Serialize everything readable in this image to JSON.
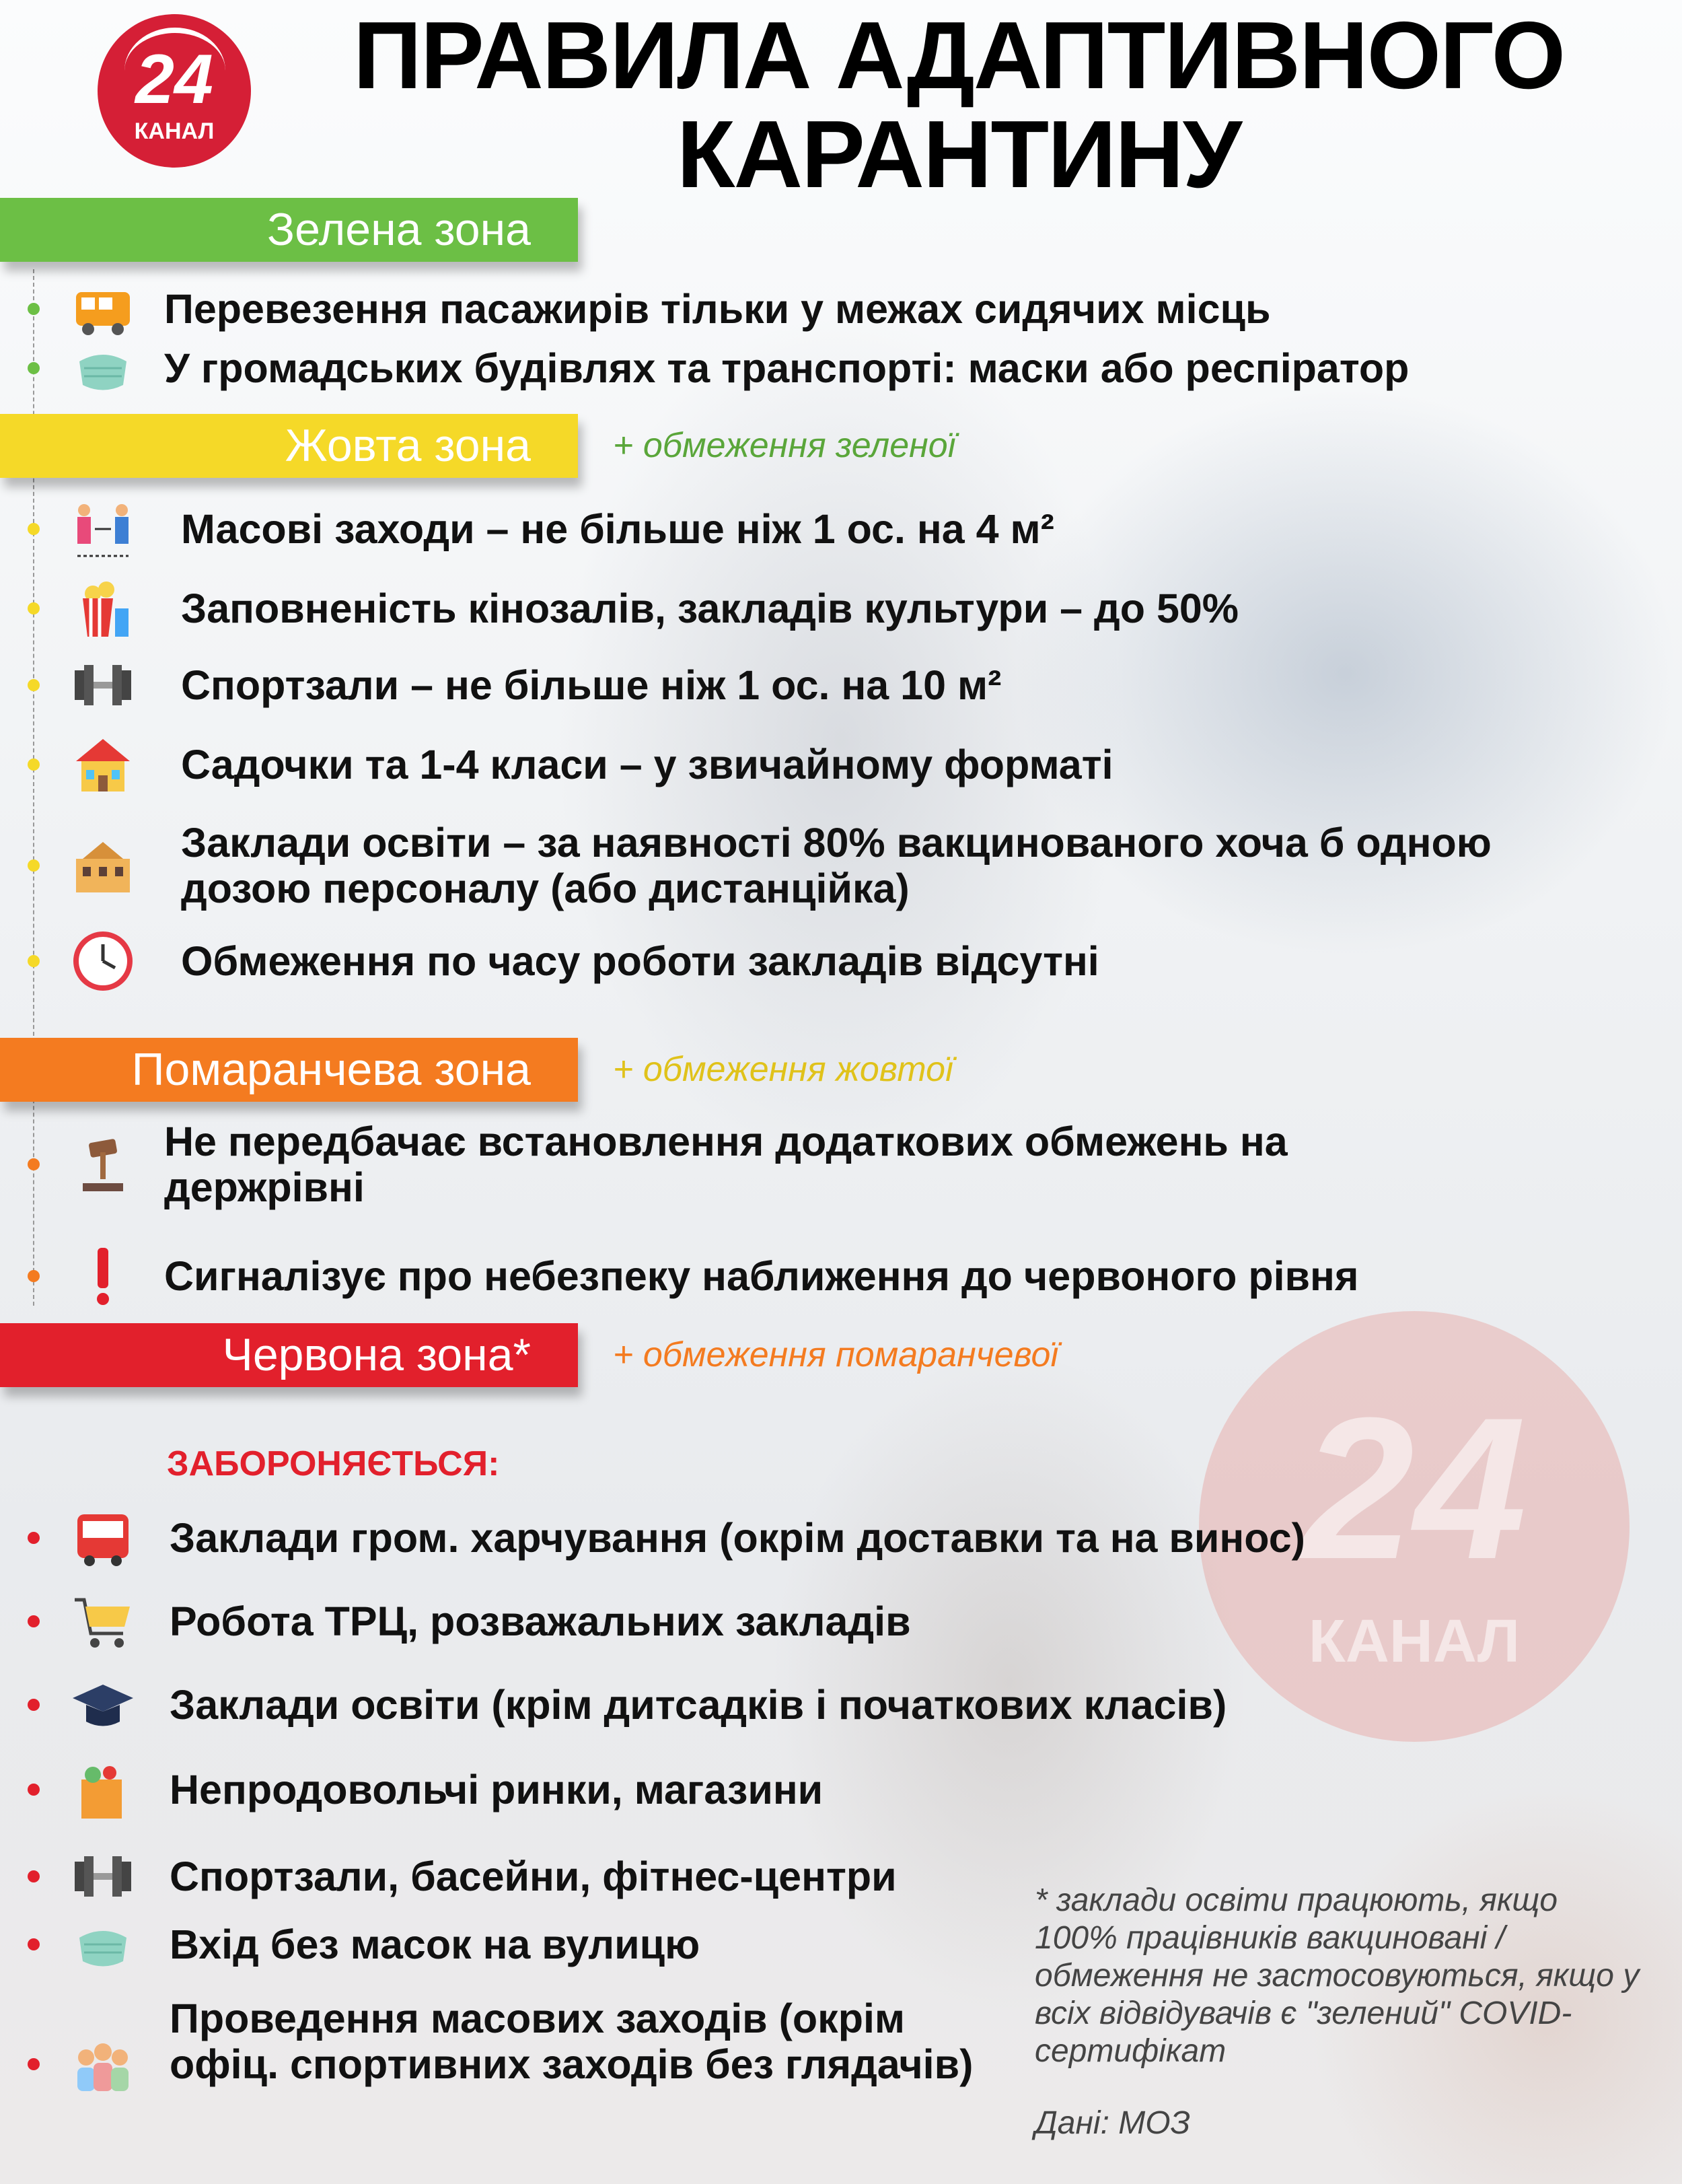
{
  "logo": {
    "number": "24",
    "word": "КАНАЛ"
  },
  "title": {
    "line1": "ПРАВИЛА АДАПТИВНОГО",
    "line2": "КАРАНТИНУ"
  },
  "colors": {
    "green": "#6cbf45",
    "yellow": "#f5d928",
    "orange": "#f47b20",
    "red": "#e2202c",
    "green_note": "#5aa63a",
    "yellow_note": "#e0c21a",
    "orange_note": "#f47b20"
  },
  "zones": {
    "green": {
      "label": "Зелена зона",
      "items": [
        {
          "text": "Перевезення пасажирів тільки у межах сидячих місць",
          "icon": "bus-icon"
        },
        {
          "text": "У громадських будівлях та транспорті: маски або респіратор",
          "icon": "mask-icon"
        }
      ]
    },
    "yellow": {
      "label": "Жовта зона",
      "note": "+ обмеження зеленої",
      "items": [
        {
          "text": "Масові заходи – не більше ніж 1 ос. на 4 м²",
          "icon": "people-distance-icon"
        },
        {
          "text": "Заповненість кінозалів, закладів культури – до 50%",
          "icon": "popcorn-icon"
        },
        {
          "text": "Спортзали – не більше ніж 1 ос. на 10 м²",
          "icon": "dumbbell-icon"
        },
        {
          "text": "Садочки та 1-4 класи – у звичайному форматі",
          "icon": "kindergarten-icon"
        },
        {
          "text": "Заклади освіти – за наявності 80% вакцинованого хоча б одною дозою персоналу (або дистанційка)",
          "icon": "school-icon"
        },
        {
          "text": "Обмеження по часу роботи закладів відсутні",
          "icon": "clock-icon"
        }
      ]
    },
    "orange": {
      "label": "Помаранчева зона",
      "note": "+ обмеження жовтої",
      "items": [
        {
          "text": "Не передбачає встановлення додаткових обмежень на держрівні",
          "icon": "gavel-icon"
        },
        {
          "text": "Сигналізує про небезпеку наближення до червоного рівня",
          "icon": "exclamation-icon"
        }
      ]
    },
    "red": {
      "label": "Червона зона*",
      "note": "+ обмеження помаранчевої",
      "forbidden_label": "ЗАБОРОНЯЄТЬСЯ:",
      "items": [
        {
          "text": "Заклади гром. харчування (окрім доставки та на винос)",
          "icon": "food-truck-icon"
        },
        {
          "text": "Робота ТРЦ, розважальних закладів",
          "icon": "shopping-cart-icon"
        },
        {
          "text": "Заклади освіти (крім дитсадків і початкових класів)",
          "icon": "graduation-cap-icon"
        },
        {
          "text": "Непродовольчі ринки, магазини",
          "icon": "grocery-bag-icon"
        },
        {
          "text": "Спортзали, басейни, фітнес-центри",
          "icon": "dumbbell-icon"
        },
        {
          "text": "Вхід без масок на вулицю",
          "icon": "mask-icon"
        },
        {
          "text": "Проведення масових заходів (окрім офіц. спортивних заходів без глядачів)",
          "icon": "crowd-icon"
        }
      ]
    }
  },
  "footnote": "* заклади освіти працюють, якщо 100% працівників вакциновані / обмеження не застосовуються, якщо у всіх відвідувачів є \"зелений\" COVID-сертифікат",
  "source": "Дані: МОЗ",
  "watermark": {
    "number": "24",
    "word": "КАНАЛ"
  }
}
